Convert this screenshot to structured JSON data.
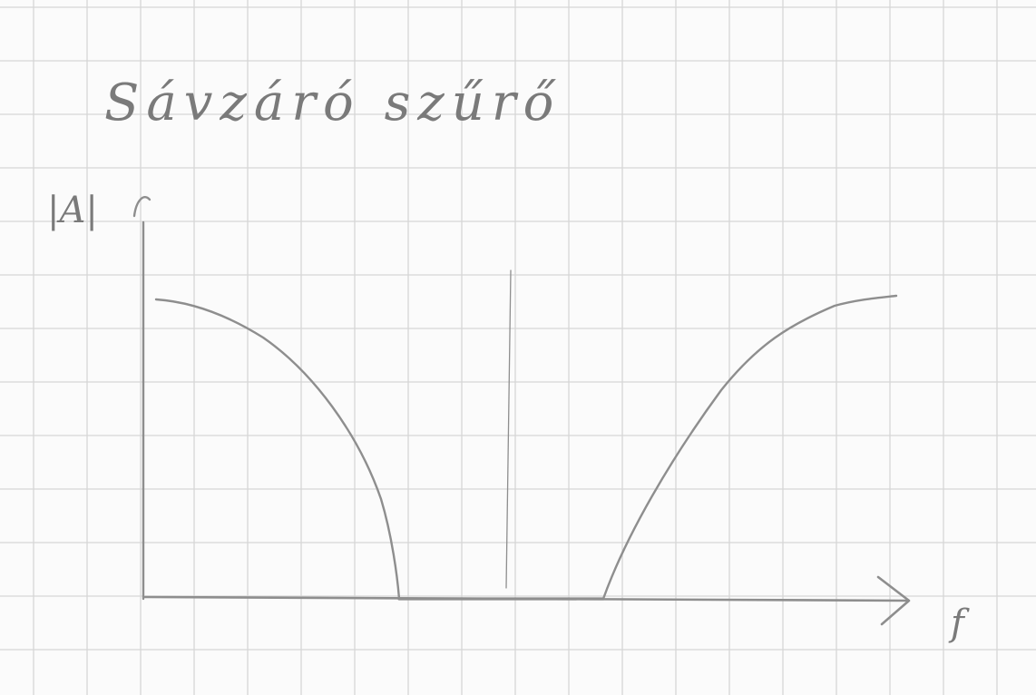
{
  "title": "Sávzáró szűrő",
  "y_axis_label": "|A|",
  "x_axis_label": "f",
  "colors": {
    "paper": "#fbfbfb",
    "grid": "#d6d6d6",
    "pencil": "#8e8e8e"
  }
}
